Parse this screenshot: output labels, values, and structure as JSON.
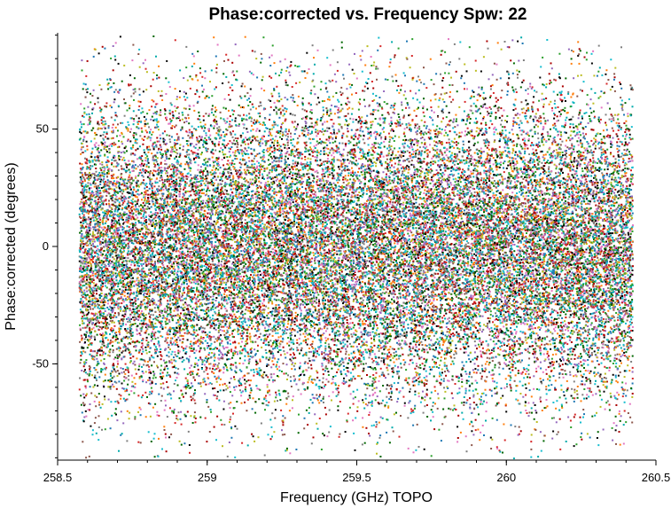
{
  "chart_data": {
    "type": "scatter",
    "title": "Phase:corrected vs. Frequency Spw: 22",
    "xlabel": "Frequency (GHz) TOPO",
    "ylabel": "Phase:corrected (degrees)",
    "xlim": [
      258.5,
      260.5
    ],
    "ylim": [
      -91,
      91
    ],
    "x_ticks": [
      258.5,
      259,
      259.5,
      260,
      260.5
    ],
    "x_tick_labels": [
      "258.5",
      "259",
      "259.5",
      "260",
      "260.5"
    ],
    "y_ticks": [
      -50,
      0,
      50
    ],
    "y_tick_labels": [
      "-50",
      "0",
      "50"
    ],
    "x_data_range": [
      258.57,
      260.42
    ],
    "phase_spread": {
      "center": 0,
      "std_dev_approx": 32,
      "note_visible": "dense noise cloud across full band"
    },
    "point_colors": [
      "#d62728",
      "#2ca02c",
      "#1f77b4",
      "#ff7f0e",
      "#9467bd",
      "#e377c2",
      "#8c564b",
      "#17becf",
      "#bcbd22",
      "#7f7f7f",
      "#000000",
      "#00aaaa",
      "#aa0000",
      "#006600"
    ],
    "grid": false,
    "legend": "none"
  }
}
